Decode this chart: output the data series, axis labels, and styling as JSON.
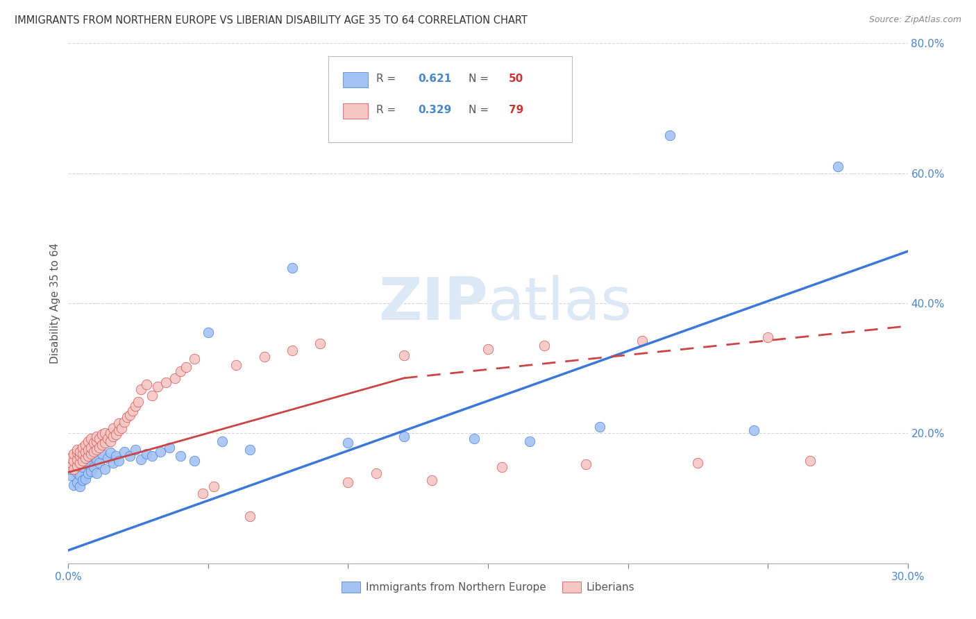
{
  "title": "IMMIGRANTS FROM NORTHERN EUROPE VS LIBERIAN DISABILITY AGE 35 TO 64 CORRELATION CHART",
  "source": "Source: ZipAtlas.com",
  "ylabel": "Disability Age 35 to 64",
  "xlim": [
    0,
    0.3
  ],
  "ylim": [
    0,
    0.8
  ],
  "blue_R": 0.621,
  "blue_N": 50,
  "pink_R": 0.329,
  "pink_N": 79,
  "blue_color": "#a4c2f4",
  "pink_color": "#f4c7c3",
  "blue_line_color": "#3b78d8",
  "pink_line_color": "#cc4444",
  "axis_color": "#4a86c8",
  "watermark_color": "#dce8f5",
  "blue_scatter_x": [
    0.001,
    0.001,
    0.002,
    0.002,
    0.003,
    0.003,
    0.004,
    0.004,
    0.004,
    0.005,
    0.005,
    0.006,
    0.006,
    0.007,
    0.007,
    0.008,
    0.008,
    0.009,
    0.01,
    0.01,
    0.011,
    0.012,
    0.013,
    0.014,
    0.015,
    0.016,
    0.017,
    0.018,
    0.02,
    0.022,
    0.024,
    0.026,
    0.028,
    0.03,
    0.033,
    0.036,
    0.04,
    0.045,
    0.05,
    0.055,
    0.065,
    0.08,
    0.1,
    0.12,
    0.145,
    0.165,
    0.19,
    0.215,
    0.245,
    0.275
  ],
  "blue_scatter_y": [
    0.135,
    0.145,
    0.12,
    0.15,
    0.125,
    0.14,
    0.118,
    0.135,
    0.155,
    0.128,
    0.148,
    0.13,
    0.158,
    0.138,
    0.152,
    0.142,
    0.165,
    0.148,
    0.138,
    0.16,
    0.155,
    0.168,
    0.145,
    0.162,
    0.17,
    0.155,
    0.165,
    0.158,
    0.172,
    0.165,
    0.175,
    0.16,
    0.168,
    0.165,
    0.172,
    0.178,
    0.165,
    0.158,
    0.355,
    0.188,
    0.175,
    0.455,
    0.185,
    0.195,
    0.192,
    0.188,
    0.21,
    0.658,
    0.205,
    0.61
  ],
  "pink_scatter_x": [
    0.001,
    0.001,
    0.001,
    0.002,
    0.002,
    0.002,
    0.003,
    0.003,
    0.003,
    0.003,
    0.004,
    0.004,
    0.004,
    0.005,
    0.005,
    0.005,
    0.006,
    0.006,
    0.006,
    0.007,
    0.007,
    0.007,
    0.008,
    0.008,
    0.008,
    0.009,
    0.009,
    0.01,
    0.01,
    0.01,
    0.011,
    0.011,
    0.012,
    0.012,
    0.013,
    0.013,
    0.014,
    0.015,
    0.015,
    0.016,
    0.016,
    0.017,
    0.018,
    0.018,
    0.019,
    0.02,
    0.021,
    0.022,
    0.023,
    0.024,
    0.025,
    0.026,
    0.028,
    0.03,
    0.032,
    0.035,
    0.038,
    0.04,
    0.042,
    0.045,
    0.048,
    0.052,
    0.06,
    0.065,
    0.07,
    0.08,
    0.09,
    0.1,
    0.11,
    0.12,
    0.13,
    0.15,
    0.155,
    0.17,
    0.185,
    0.205,
    0.225,
    0.25,
    0.265
  ],
  "pink_scatter_y": [
    0.148,
    0.155,
    0.162,
    0.145,
    0.158,
    0.168,
    0.15,
    0.16,
    0.17,
    0.175,
    0.155,
    0.165,
    0.172,
    0.158,
    0.168,
    0.178,
    0.162,
    0.172,
    0.182,
    0.165,
    0.175,
    0.188,
    0.168,
    0.178,
    0.192,
    0.172,
    0.185,
    0.175,
    0.188,
    0.195,
    0.178,
    0.192,
    0.182,
    0.198,
    0.185,
    0.2,
    0.192,
    0.188,
    0.2,
    0.195,
    0.208,
    0.198,
    0.205,
    0.215,
    0.208,
    0.218,
    0.225,
    0.228,
    0.235,
    0.242,
    0.248,
    0.268,
    0.275,
    0.258,
    0.272,
    0.278,
    0.285,
    0.295,
    0.302,
    0.315,
    0.108,
    0.118,
    0.305,
    0.072,
    0.318,
    0.328,
    0.338,
    0.125,
    0.138,
    0.32,
    0.128,
    0.33,
    0.148,
    0.335,
    0.152,
    0.342,
    0.155,
    0.348,
    0.158
  ]
}
